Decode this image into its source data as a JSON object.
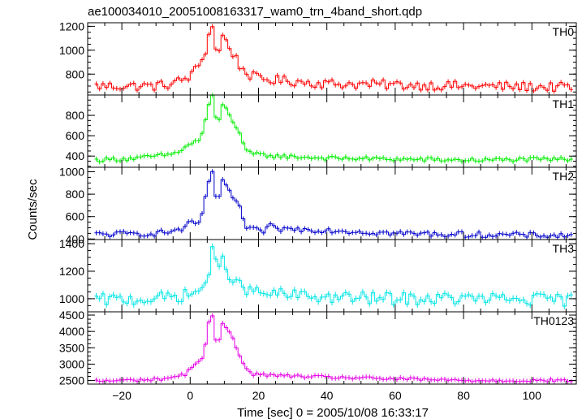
{
  "chart_data": {
    "type": "line",
    "title": "ae100034010_20051008163317_wam0_trn_4band_short.qdp",
    "xlabel": "Time [sec] 0 = 2005/10/08 16:33:17",
    "ylabel": "Counts/sec",
    "xlim": [
      -30,
      113
    ],
    "x_ticks": [
      -20,
      0,
      20,
      40,
      60,
      80,
      100
    ],
    "bin_width_sec": 1.0,
    "x_range": [
      -28,
      112
    ],
    "grid": false,
    "panels": [
      {
        "name": "TH0",
        "color": "#ff0000",
        "ylim": [
          625,
          1230
        ],
        "yticks": [
          800,
          1000,
          1200
        ],
        "baseline_level": 700,
        "noise_amplitude": 40,
        "profile": [
          [
            -28,
            700
          ],
          [
            -10,
            700
          ],
          [
            -5,
            720
          ],
          [
            0,
            780
          ],
          [
            2,
            850
          ],
          [
            4,
            950
          ],
          [
            5,
            1050
          ],
          [
            6,
            1190
          ],
          [
            7,
            1230
          ],
          [
            8,
            820
          ],
          [
            9,
            1150
          ],
          [
            10,
            1100
          ],
          [
            11,
            1050
          ],
          [
            13,
            950
          ],
          [
            15,
            850
          ],
          [
            17,
            800
          ],
          [
            20,
            760
          ],
          [
            30,
            740
          ],
          [
            40,
            720
          ],
          [
            60,
            710
          ],
          [
            80,
            700
          ],
          [
            112,
            690
          ]
        ]
      },
      {
        "name": "TH1",
        "color": "#00ee00",
        "ylim": [
          290,
          1000
        ],
        "yticks": [
          400,
          600,
          800
        ],
        "baseline_level": 360,
        "noise_amplitude": 20,
        "profile": [
          [
            -28,
            360
          ],
          [
            -15,
            380
          ],
          [
            -5,
            420
          ],
          [
            -2,
            470
          ],
          [
            0,
            520
          ],
          [
            3,
            560
          ],
          [
            5,
            820
          ],
          [
            6,
            1000
          ],
          [
            7,
            980
          ],
          [
            8,
            560
          ],
          [
            9,
            940
          ],
          [
            10,
            890
          ],
          [
            11,
            830
          ],
          [
            13,
            720
          ],
          [
            15,
            600
          ],
          [
            16,
            450
          ],
          [
            18,
            420
          ],
          [
            25,
            400
          ],
          [
            40,
            380
          ],
          [
            60,
            370
          ],
          [
            80,
            360
          ],
          [
            112,
            370
          ]
        ]
      },
      {
        "name": "TH2",
        "color": "#0000cc",
        "ylim": [
          395,
          1040
        ],
        "yticks": [
          400,
          600,
          800,
          1000
        ],
        "baseline_level": 440,
        "noise_amplitude": 25,
        "profile": [
          [
            -28,
            440
          ],
          [
            -10,
            450
          ],
          [
            -5,
            470
          ],
          [
            -1,
            500
          ],
          [
            0,
            560
          ],
          [
            1,
            520
          ],
          [
            3,
            560
          ],
          [
            5,
            820
          ],
          [
            6,
            1030
          ],
          [
            7,
            980
          ],
          [
            8,
            600
          ],
          [
            9,
            930
          ],
          [
            10,
            880
          ],
          [
            12,
            800
          ],
          [
            14,
            720
          ],
          [
            15,
            650
          ],
          [
            16,
            500
          ],
          [
            18,
            480
          ],
          [
            22,
            470
          ],
          [
            23,
            520
          ],
          [
            25,
            490
          ],
          [
            40,
            480
          ],
          [
            60,
            450
          ],
          [
            80,
            440
          ],
          [
            112,
            430
          ]
        ]
      },
      {
        "name": "TH3",
        "color": "#00e5e5",
        "ylim": [
          905,
          1430
        ],
        "yticks": [
          1000,
          1200,
          1400
        ],
        "baseline_level": 990,
        "noise_amplitude": 45,
        "profile": [
          [
            -28,
            990
          ],
          [
            -10,
            1000
          ],
          [
            0,
            1030
          ],
          [
            4,
            1080
          ],
          [
            6,
            1250
          ],
          [
            7,
            1420
          ],
          [
            8,
            1100
          ],
          [
            9,
            1300
          ],
          [
            10,
            1280
          ],
          [
            12,
            1150
          ],
          [
            15,
            1080
          ],
          [
            20,
            1040
          ],
          [
            40,
            1010
          ],
          [
            60,
            1000
          ],
          [
            80,
            1000
          ],
          [
            112,
            990
          ]
        ]
      },
      {
        "name": "TH0123",
        "color": "#e600e6",
        "ylim": [
          2390,
          4600
        ],
        "yticks": [
          2500,
          3000,
          3500,
          4000,
          4500
        ],
        "baseline_level": 2480,
        "noise_amplitude": 45,
        "profile": [
          [
            -28,
            2480
          ],
          [
            -10,
            2530
          ],
          [
            -5,
            2600
          ],
          [
            -1,
            2700
          ],
          [
            0,
            2900
          ],
          [
            2,
            3050
          ],
          [
            4,
            3200
          ],
          [
            5,
            3950
          ],
          [
            6,
            4550
          ],
          [
            7,
            4400
          ],
          [
            8,
            3100
          ],
          [
            9,
            4300
          ],
          [
            10,
            4200
          ],
          [
            12,
            3950
          ],
          [
            14,
            3400
          ],
          [
            16,
            2900
          ],
          [
            18,
            2700
          ],
          [
            25,
            2650
          ],
          [
            40,
            2600
          ],
          [
            60,
            2550
          ],
          [
            80,
            2500
          ],
          [
            112,
            2500
          ]
        ]
      }
    ]
  }
}
